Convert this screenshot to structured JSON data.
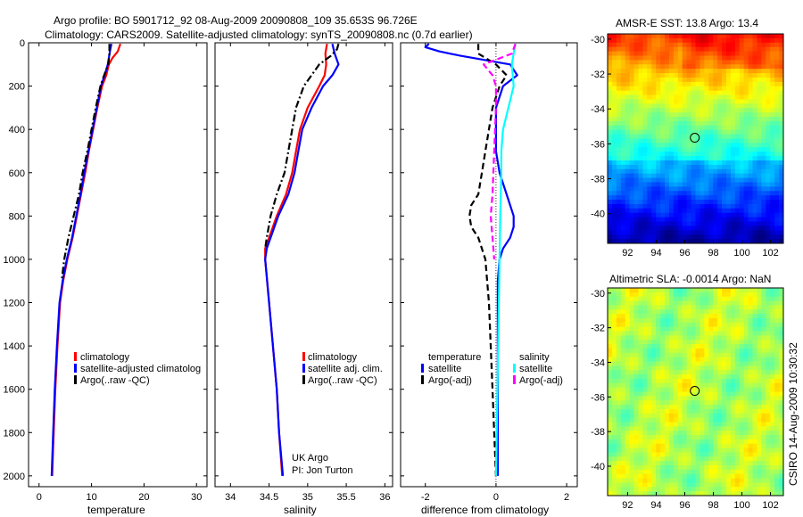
{
  "header": {
    "line1": "Argo profile: BO 5901712_92 08-Aug-2009 20090808_109 35.653S 96.726E",
    "line2": "Climatology: CARS2009. Satellite-adjusted climatology: synTS_20090808.nc (0.7d earlier)"
  },
  "colors": {
    "climatology": "#ff0000",
    "satellite": "#0000ff",
    "argo": "#000000",
    "sal_satellite": "#00ffff",
    "sal_argo": "#ff00ff"
  },
  "chart_data": [
    {
      "type": "line",
      "name": "temperature-panel",
      "xlabel": "temperature",
      "ylabel": "",
      "xlim": [
        -2,
        32
      ],
      "ylim": [
        2050,
        0
      ],
      "xticks": [
        0,
        10,
        20,
        30
      ],
      "yticks": [
        0,
        200,
        400,
        600,
        800,
        1000,
        1200,
        1400,
        1600,
        1800,
        2000
      ],
      "legend": [
        "climatology",
        "satellite-adjusted climatolog",
        "Argo(..raw -QC)"
      ],
      "series": [
        {
          "name": "climatology",
          "style": "solid",
          "color": "#ff0000",
          "depth": [
            5,
            40,
            70,
            100,
            150,
            200,
            300,
            400,
            500,
            600,
            700,
            800,
            900,
            1000,
            1100,
            1200,
            1400,
            1600,
            1800,
            2000
          ],
          "values": [
            15.5,
            15.0,
            14.0,
            13.3,
            12.8,
            12.0,
            11.1,
            10.3,
            9.5,
            8.8,
            8.0,
            7.2,
            6.4,
            5.4,
            4.6,
            4.0,
            3.5,
            3.1,
            2.8,
            2.5
          ]
        },
        {
          "name": "satellite",
          "style": "solid",
          "color": "#0000ff",
          "depth": [
            5,
            40,
            70,
            100,
            150,
            200,
            300,
            400,
            500,
            600,
            700,
            800,
            900,
            1000,
            1100,
            1200,
            1400,
            1600,
            1800,
            2000
          ],
          "values": [
            13.8,
            13.5,
            13.3,
            13.1,
            12.5,
            11.8,
            11.0,
            10.2,
            9.4,
            8.6,
            7.9,
            7.1,
            6.3,
            5.3,
            4.5,
            3.9,
            3.4,
            3.0,
            2.7,
            2.4
          ]
        },
        {
          "name": "argo",
          "style": "dashdot",
          "color": "#000000",
          "depth": [
            5,
            50,
            100,
            150,
            200,
            300,
            400,
            500,
            600,
            700,
            800,
            900,
            1000,
            1100
          ],
          "values": [
            13.4,
            13.4,
            13.2,
            12.4,
            11.7,
            10.8,
            10.0,
            9.2,
            8.3,
            7.6,
            6.6,
            5.6,
            4.8,
            4.3
          ]
        }
      ]
    },
    {
      "type": "line",
      "name": "salinity-panel",
      "xlabel": "salinity",
      "xlim": [
        33.8,
        36.1
      ],
      "ylim": [
        2050,
        0
      ],
      "xticks": [
        34,
        34.5,
        35,
        35.5,
        36
      ],
      "tick_labels": [
        "34",
        "34.5",
        "35",
        "35.5",
        "36"
      ],
      "legend": [
        "climatology",
        "satellite adj. clim.",
        "Argo(..raw -QC)"
      ],
      "annotation": [
        "UK Argo",
        "PI: Jon Turton"
      ],
      "series": [
        {
          "name": "climatology",
          "style": "solid",
          "color": "#ff0000",
          "depth": [
            5,
            50,
            100,
            150,
            200,
            300,
            400,
            500,
            600,
            700,
            800,
            900,
            950,
            1000,
            1200,
            1400,
            1600,
            1800,
            2000
          ],
          "values": [
            35.25,
            35.23,
            35.24,
            35.22,
            35.15,
            35.0,
            34.9,
            34.85,
            34.8,
            34.72,
            34.6,
            34.5,
            34.45,
            34.45,
            34.5,
            34.55,
            34.6,
            34.63,
            34.67
          ]
        },
        {
          "name": "satellite",
          "style": "solid",
          "color": "#0000ff",
          "depth": [
            5,
            50,
            100,
            150,
            200,
            300,
            400,
            500,
            600,
            700,
            800,
            900,
            950,
            1000,
            1200,
            1400,
            1600,
            1800,
            2000
          ],
          "values": [
            35.32,
            35.35,
            35.4,
            35.32,
            35.2,
            35.05,
            34.93,
            34.88,
            34.83,
            34.75,
            34.62,
            34.52,
            34.47,
            34.45,
            34.5,
            34.55,
            34.6,
            34.63,
            34.68
          ]
        },
        {
          "name": "argo",
          "style": "dashdot",
          "color": "#000000",
          "depth": [
            5,
            30,
            60,
            100,
            150,
            200,
            300,
            400,
            500,
            600,
            700,
            800,
            900,
            950
          ],
          "values": [
            35.4,
            35.38,
            35.3,
            35.15,
            35.05,
            34.95,
            34.85,
            34.8,
            34.75,
            34.7,
            34.6,
            34.52,
            34.47,
            34.45
          ]
        }
      ]
    },
    {
      "type": "line",
      "name": "difference-panel",
      "xlabel": "difference from climatology",
      "xlim": [
        -2.7,
        2.3
      ],
      "ylim": [
        2050,
        0
      ],
      "xticks": [
        -2,
        0,
        2
      ],
      "legend": {
        "temperature": [
          "satellite",
          "Argo(-adj)"
        ],
        "salinity": [
          "satellite",
          "Argo(-adj)"
        ]
      },
      "legend_titles": [
        "temperature",
        "salinity"
      ],
      "series": [
        {
          "name": "temperature satellite",
          "style": "solid",
          "color": "#0000ff",
          "depth": [
            5,
            20,
            40,
            60,
            80,
            100,
            150,
            200,
            300,
            400,
            500,
            600,
            700,
            800,
            850,
            900,
            950,
            1000,
            1100,
            1200,
            1400,
            1600,
            1800,
            2000
          ],
          "values": [
            -1.9,
            -2.0,
            -1.6,
            -1.0,
            -0.3,
            0.4,
            0.6,
            0.2,
            0.0,
            0.0,
            0.0,
            0.1,
            0.3,
            0.5,
            0.5,
            0.4,
            0.2,
            0.1,
            0.05,
            0.05,
            0.05,
            0.05,
            0.05,
            0.05
          ]
        },
        {
          "name": "temperature argo",
          "style": "dashed",
          "color": "#000000",
          "depth": [
            5,
            50,
            100,
            150,
            200,
            300,
            400,
            500,
            600,
            700,
            750,
            800,
            850,
            900,
            1000,
            1200,
            1400,
            1600,
            1800,
            2000
          ],
          "values": [
            -0.5,
            -0.5,
            0.0,
            0.3,
            0.1,
            -0.1,
            -0.2,
            -0.3,
            -0.4,
            -0.5,
            -0.7,
            -0.75,
            -0.7,
            -0.5,
            -0.3,
            -0.2,
            -0.15,
            -0.1,
            -0.05,
            0.0
          ]
        },
        {
          "name": "salinity satellite",
          "style": "solid",
          "color": "#00ffff",
          "depth": [
            5,
            50,
            100,
            200,
            300,
            400,
            500,
            600,
            800,
            1000,
            1200,
            1400,
            1600,
            1800,
            2000
          ],
          "values": [
            0.55,
            0.5,
            0.45,
            0.5,
            0.35,
            0.2,
            0.15,
            0.15,
            0.12,
            0.1,
            0.08,
            0.06,
            0.04,
            0.02,
            0.0
          ]
        },
        {
          "name": "salinity argo",
          "style": "dashed",
          "color": "#ff00ff",
          "depth": [
            5,
            50,
            100,
            150,
            200,
            300,
            500,
            700,
            800,
            900,
            1000
          ],
          "values": [
            0.55,
            0.45,
            -0.35,
            -0.1,
            0.0,
            0.0,
            -0.05,
            -0.1,
            -0.15,
            -0.1,
            -0.05
          ]
        }
      ]
    },
    {
      "type": "heatmap",
      "name": "sst-map",
      "title": "AMSR-E SST: 13.8 Argo: 13.4",
      "xticks": [
        92,
        94,
        96,
        98,
        100,
        102
      ],
      "yticks": [
        -30,
        -32,
        -34,
        -36,
        -38,
        -40
      ],
      "marker": {
        "lon": 96.7,
        "lat": -35.65
      }
    },
    {
      "type": "heatmap",
      "name": "sla-map",
      "title": "Altimetric SLA: -0.0014 Argo: NaN",
      "xticks": [
        92,
        94,
        96,
        98,
        100,
        102
      ],
      "yticks": [
        -30,
        -32,
        -34,
        -36,
        -38,
        -40
      ],
      "marker": {
        "lon": 96.7,
        "lat": -35.65
      }
    }
  ],
  "footer": {
    "stamp": "CSIRO 14-Aug-2009 10:30:32"
  }
}
